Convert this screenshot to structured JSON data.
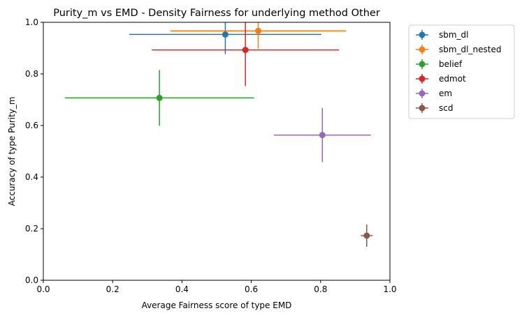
{
  "chart_data": {
    "type": "scatter",
    "title": "Purity_m vs EMD - Density Fairness for underlying method Other",
    "xlabel": "Average Fairness score of type EMD",
    "ylabel": "Accuracy of type Purity_m",
    "xlim": [
      0,
      1
    ],
    "ylim": [
      0,
      1
    ],
    "x_ticks": [
      "0.0",
      "0.2",
      "0.4",
      "0.6",
      "0.8",
      "1.0"
    ],
    "y_ticks": [
      "0.0",
      "0.2",
      "0.4",
      "0.6",
      "0.8",
      "1.0"
    ],
    "grid": false,
    "legend_position": "outside-top-right",
    "series": [
      {
        "name": "sbm_dl",
        "color": "#1f77b4",
        "x": 0.525,
        "y": 0.953,
        "xerr": 0.277,
        "yerr": 0.076
      },
      {
        "name": "sbm_dl_nested",
        "color": "#ff7f0e",
        "x": 0.62,
        "y": 0.967,
        "xerr": 0.253,
        "yerr": 0.07
      },
      {
        "name": "belief",
        "color": "#2ca02c",
        "x": 0.335,
        "y": 0.707,
        "xerr": 0.273,
        "yerr": 0.108
      },
      {
        "name": "edmot",
        "color": "#d62728",
        "x": 0.583,
        "y": 0.893,
        "xerr": 0.27,
        "yerr": 0.14
      },
      {
        "name": "em",
        "color": "#9467bd",
        "x": 0.805,
        "y": 0.563,
        "xerr": 0.14,
        "yerr": 0.105
      },
      {
        "name": "scd",
        "color": "#8c564b",
        "x": 0.933,
        "y": 0.173,
        "xerr": 0.017,
        "yerr": 0.043
      }
    ]
  }
}
